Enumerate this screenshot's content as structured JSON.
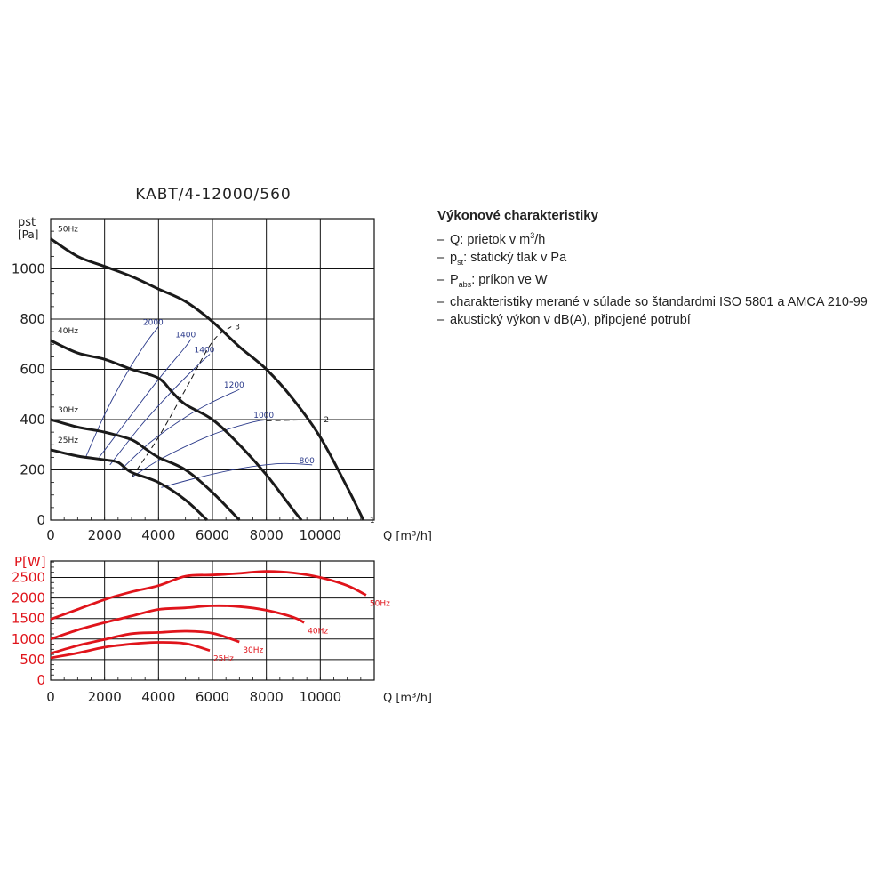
{
  "legend_panel": {
    "heading": "Výkonové charakteristiky",
    "items": [
      {
        "pre": "Q: prietok v m",
        "sup": "3",
        "sub": "",
        "post": "/h"
      },
      {
        "pre": "p",
        "sup": "",
        "sub": "st",
        "post": ": statický tlak v Pa"
      },
      {
        "pre": "P",
        "sup": "",
        "sub": "abs",
        "post": ": príkon ve W"
      },
      {
        "pre": "charakteristiky merané v súlade so štandardmi ISO 5801 a AMCA 210-99",
        "sup": "",
        "sub": "",
        "post": ""
      },
      {
        "pre": "akustický výkon v dB(A), připojené potrubí",
        "sup": "",
        "sub": "",
        "post": ""
      }
    ]
  },
  "chart_data": [
    {
      "type": "line",
      "title": "KABT/4-12000/560",
      "ylabel_line1": "pst",
      "ylabel_line2": "[Pa]",
      "xlabel": "Q [m³/h]",
      "xlim": [
        0,
        12000
      ],
      "ylim": [
        0,
        1200
      ],
      "xticks": [
        0,
        2000,
        4000,
        6000,
        8000,
        10000
      ],
      "yticks": [
        0,
        200,
        400,
        600,
        800,
        1000
      ],
      "grid": true,
      "line_color": "#1a1a1a",
      "series": [
        {
          "name": "50Hz",
          "x": [
            0,
            1000,
            2000,
            3000,
            4000,
            5000,
            6000,
            7000,
            8000,
            9000,
            10000,
            11000,
            11600
          ],
          "y": [
            1120,
            1050,
            1010,
            970,
            920,
            870,
            790,
            690,
            600,
            480,
            330,
            130,
            0
          ]
        },
        {
          "name": "40Hz",
          "x": [
            0,
            1000,
            2000,
            3000,
            4000,
            4500,
            5000,
            6000,
            7000,
            8000,
            9000,
            9300
          ],
          "y": [
            715,
            665,
            640,
            600,
            565,
            510,
            460,
            400,
            300,
            180,
            40,
            0
          ]
        },
        {
          "name": "30Hz",
          "x": [
            0,
            1000,
            2000,
            3000,
            3500,
            4000,
            5000,
            6000,
            7000
          ],
          "y": [
            400,
            370,
            350,
            320,
            285,
            250,
            200,
            110,
            0
          ]
        },
        {
          "name": "25Hz",
          "x": [
            0,
            1000,
            2000,
            2500,
            3000,
            4000,
            5000,
            5800
          ],
          "y": [
            280,
            255,
            240,
            230,
            190,
            150,
            80,
            0
          ]
        }
      ],
      "rpm_curves": [
        {
          "label": "2000",
          "x": [
            1300,
            2000,
            2800,
            3500,
            4000
          ],
          "y": [
            250,
            420,
            580,
            700,
            770
          ]
        },
        {
          "label": "1400",
          "x": [
            1800,
            3000,
            4000,
            5000,
            5200
          ],
          "y": [
            250,
            420,
            560,
            690,
            720
          ]
        },
        {
          "label": "1400",
          "x": [
            2200,
            3300,
            4300,
            5300,
            5900
          ],
          "y": [
            220,
            370,
            490,
            600,
            660
          ]
        },
        {
          "label": "1200",
          "x": [
            2600,
            3700,
            5000,
            6000,
            7000
          ],
          "y": [
            200,
            310,
            410,
            470,
            520
          ]
        },
        {
          "label": "1000",
          "x": [
            3000,
            4200,
            6000,
            7500,
            8100
          ],
          "y": [
            170,
            250,
            340,
            390,
            400
          ]
        },
        {
          "label": "800",
          "x": [
            4100,
            5500,
            7000,
            8500,
            9700
          ],
          "y": [
            130,
            170,
            205,
            225,
            220
          ]
        }
      ],
      "system_curves": [
        {
          "label": "3",
          "x": [
            3000,
            4000,
            5000,
            6000,
            6700
          ],
          "y": [
            170,
            330,
            520,
            710,
            770
          ]
        },
        {
          "label": "2",
          "x": [
            8000,
            9000,
            10000
          ],
          "y": [
            395,
            398,
            400
          ]
        },
        {
          "label": "1",
          "x": [
            11600,
            11700
          ],
          "y": [
            0,
            0
          ]
        }
      ],
      "rpm_color": "#2b3a8a"
    },
    {
      "type": "line",
      "ylabel": "P[W]",
      "xlabel": "Q [m³/h]",
      "xlim": [
        0,
        12000
      ],
      "ylim": [
        0,
        2900
      ],
      "xticks": [
        0,
        2000,
        4000,
        6000,
        8000,
        10000
      ],
      "yticks": [
        0,
        500,
        1000,
        1500,
        2000,
        2500
      ],
      "grid": true,
      "line_color": "#e0141b",
      "series": [
        {
          "name": "50Hz",
          "x": [
            0,
            1000,
            2000,
            3000,
            4000,
            5000,
            6000,
            7000,
            8000,
            9000,
            10000,
            11000,
            11700
          ],
          "y": [
            1480,
            1720,
            1960,
            2150,
            2300,
            2530,
            2560,
            2600,
            2650,
            2610,
            2500,
            2300,
            2070
          ]
        },
        {
          "name": "40Hz",
          "x": [
            0,
            1000,
            2000,
            3000,
            4000,
            5000,
            6000,
            7000,
            8000,
            9000,
            9400
          ],
          "y": [
            1000,
            1220,
            1400,
            1560,
            1720,
            1760,
            1810,
            1790,
            1700,
            1530,
            1400
          ]
        },
        {
          "name": "30Hz",
          "x": [
            0,
            1000,
            2000,
            3000,
            4000,
            5000,
            6000,
            7000
          ],
          "y": [
            650,
            840,
            990,
            1130,
            1160,
            1190,
            1140,
            930
          ]
        },
        {
          "name": "25Hz",
          "x": [
            0,
            1000,
            2000,
            3000,
            4000,
            5000,
            5900
          ],
          "y": [
            540,
            660,
            800,
            880,
            920,
            890,
            720
          ]
        }
      ]
    }
  ]
}
